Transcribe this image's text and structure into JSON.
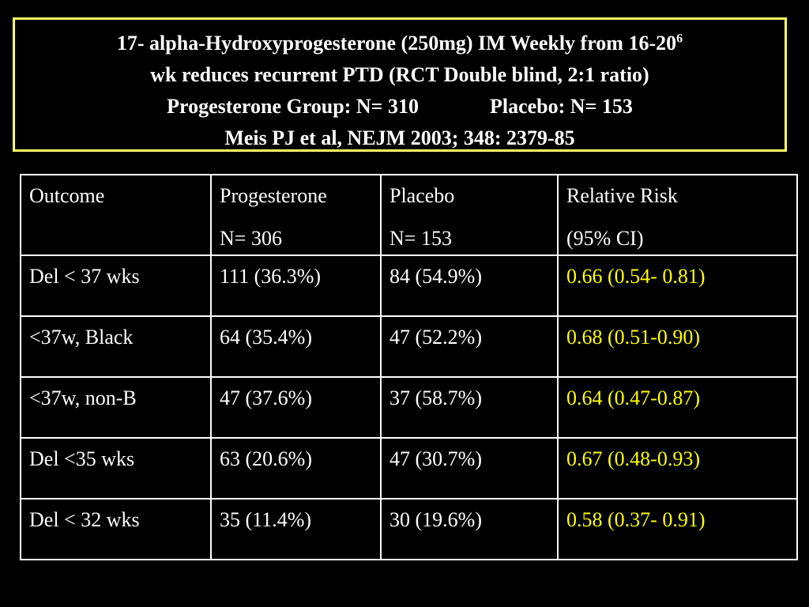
{
  "title": {
    "line1": "17- alpha-Hydroxyprogesterone (250mg) IM Weekly from 16-20",
    "line1_sup": "6",
    "line2": "wk reduces recurrent PTD (RCT Double blind, 2:1 ratio)",
    "line3_left": "Progesterone Group: N= 310",
    "line3_right": "Placebo: N= 153",
    "line4": "Meis PJ et al, NEJM 2003; 348: 2379-85"
  },
  "table": {
    "headers": [
      [
        "Outcome"
      ],
      [
        "Progesterone",
        "N= 306"
      ],
      [
        "Placebo",
        "N= 153"
      ],
      [
        "Relative Risk",
        "(95% CI)"
      ]
    ],
    "rows": [
      {
        "outcome": "Del < 37 wks",
        "progesterone": "111 (36.3%)",
        "placebo": "84 (54.9%)",
        "rr": "0.66 (0.54- 0.81)"
      },
      {
        "outcome": "<37w, Black",
        "progesterone": "64 (35.4%)",
        "placebo": "47 (52.2%)",
        "rr": "0.68 (0.51-0.90)"
      },
      {
        "outcome": "<37w, non-B",
        "progesterone": "47 (37.6%)",
        "placebo": "37 (58.7%)",
        "rr": "0.64 (0.47-0.87)"
      },
      {
        "outcome": "Del <35 wks",
        "progesterone": "63 (20.6%)",
        "placebo": "47 (30.7%)",
        "rr": "0.67 (0.48-0.93)"
      },
      {
        "outcome": "Del < 32 wks",
        "progesterone": "35 (11.4%)",
        "placebo": "30 (19.6%)",
        "rr": "0.58 (0.37- 0.91)"
      }
    ]
  },
  "colors": {
    "background": "#000000",
    "text": "#ffffff",
    "title_border": "#ffff66",
    "relative_risk": "#ffff00"
  }
}
